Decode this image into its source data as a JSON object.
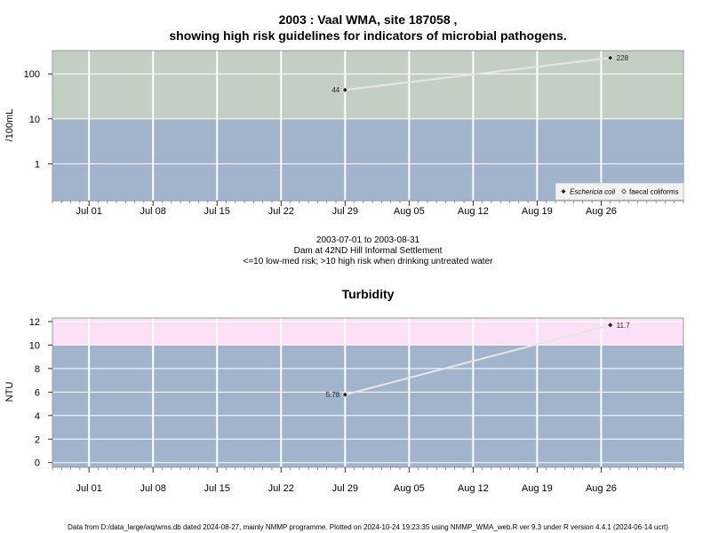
{
  "header": {
    "title_line1": "2003 : Vaal WMA, site 187058 ,",
    "title_line2": "showing high risk guidelines for indicators of microbial pathogens."
  },
  "middle_caption": {
    "line1": "2003-07-01 to 2003-08-31",
    "line2": "Dam at 42ND Hill Informal Settlement",
    "line3": "<=10 low-med risk; >10 high risk when drinking untreated water"
  },
  "footer": {
    "text": "Data from D:/data_large/wq/wms.db dated 2024-08-27, mainly NMMP programme. Plotted on 2024-10-24 19:23:35 using NMMP_WMA_web.R ver 9.3 under R version 4.4.1 (2024-06-14 ucrt)"
  },
  "chart_data": [
    {
      "type": "line",
      "title": "",
      "ylabel": "/100mL",
      "yscale": "log",
      "yticks": [
        1,
        10,
        100
      ],
      "ytick_labels": [
        "1",
        "10",
        "100"
      ],
      "xrange": [
        "2003-06-27",
        "2003-09-04"
      ],
      "xticks": [
        "2003-07-01",
        "2003-07-08",
        "2003-07-15",
        "2003-07-22",
        "2003-07-29",
        "2003-08-05",
        "2003-08-12",
        "2003-08-19",
        "2003-08-26"
      ],
      "xtick_labels": [
        "Jul 01",
        "Jul 08",
        "Jul 15",
        "Jul 22",
        "Jul 29",
        "Aug 05",
        "Aug 12",
        "Aug 19",
        "Aug 26"
      ],
      "ylim": [
        0.15,
        330
      ],
      "thresholds": [
        {
          "value": 10,
          "above_color": "#c4cfc3",
          "below_color": "#a2b4cc"
        }
      ],
      "grid": true,
      "legend": {
        "position": "bottom-right",
        "entries": [
          "Eschericia coli",
          "faecal coliforms"
        ]
      },
      "series": [
        {
          "name": "Eschericia coli",
          "marker": "filled-diamond",
          "x": [
            "2003-07-29",
            "2003-08-27"
          ],
          "y": [
            44,
            228
          ],
          "labels": [
            "44",
            "228"
          ]
        }
      ]
    },
    {
      "type": "line",
      "title": "Turbidity",
      "ylabel": "NTU",
      "yscale": "linear",
      "yticks": [
        0,
        2,
        4,
        6,
        8,
        10,
        12
      ],
      "ytick_labels": [
        "0",
        "2",
        "4",
        "6",
        "8",
        "10",
        "12"
      ],
      "xrange": [
        "2003-06-27",
        "2003-09-04"
      ],
      "xticks": [
        "2003-07-01",
        "2003-07-08",
        "2003-07-15",
        "2003-07-22",
        "2003-07-29",
        "2003-08-05",
        "2003-08-12",
        "2003-08-19",
        "2003-08-26"
      ],
      "xtick_labels": [
        "Jul 01",
        "Jul 08",
        "Jul 15",
        "Jul 22",
        "Jul 29",
        "Aug 05",
        "Aug 12",
        "Aug 19",
        "Aug 26"
      ],
      "ylim": [
        -0.4,
        12.3
      ],
      "thresholds": [
        {
          "value": 10,
          "above_color": "#fce0f7",
          "below_color": "#a2b4cc"
        }
      ],
      "grid": true,
      "series": [
        {
          "name": "",
          "marker": "filled-diamond",
          "x": [
            "2003-07-29",
            "2003-08-27"
          ],
          "y": [
            5.78,
            11.7
          ],
          "labels": [
            "5.78",
            "11.7"
          ]
        }
      ]
    }
  ]
}
